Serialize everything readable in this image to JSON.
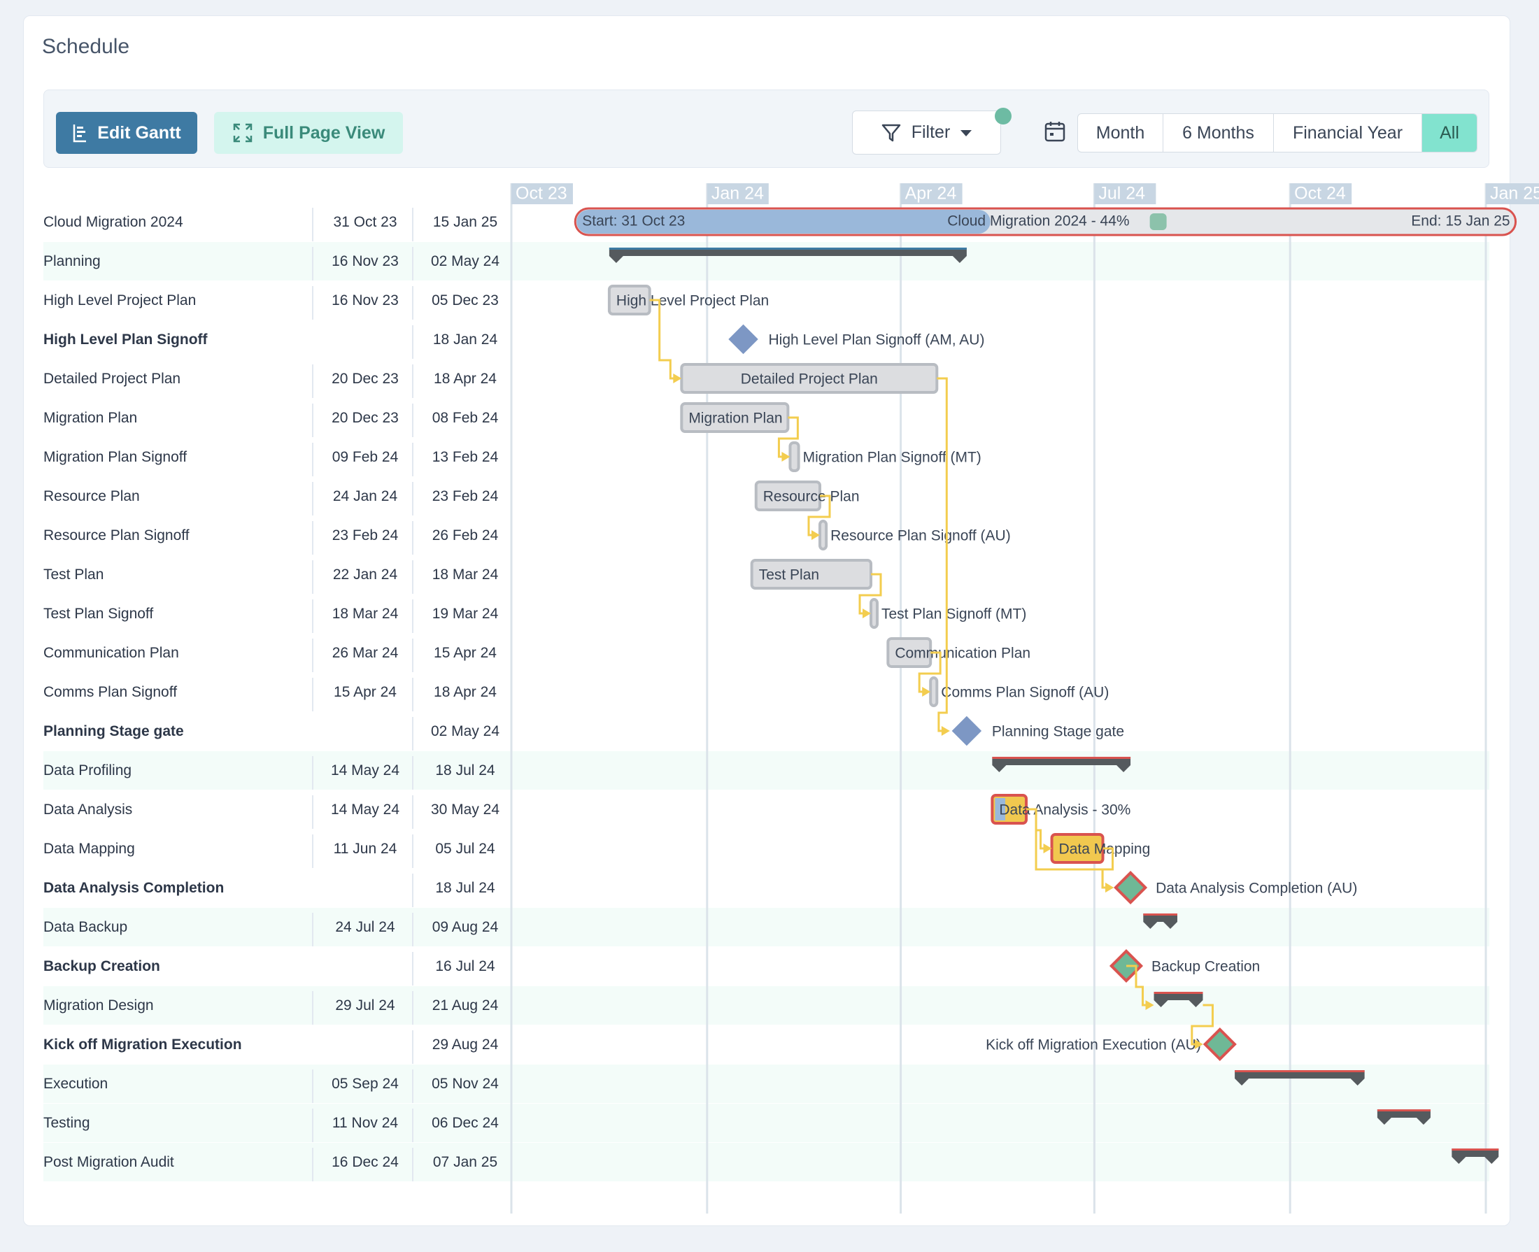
{
  "page_title": "Schedule",
  "toolbar": {
    "edit_gantt": "Edit Gantt",
    "full_page_view": "Full Page View",
    "filter": "Filter",
    "ranges": [
      "Month",
      "6 Months",
      "Financial Year",
      "All"
    ],
    "active_range": "All"
  },
  "timeline": {
    "axis_labels": [
      "Oct 23",
      "Jan 24",
      "Apr 24",
      "Jul 24",
      "Oct 24",
      "Jan 25"
    ],
    "axis_dates": [
      "2023-10-01",
      "2024-01-01",
      "2024-04-01",
      "2024-07-01",
      "2024-10-01",
      "2025-01-01"
    ]
  },
  "summary": {
    "start_label": "Start: 31 Oct 23",
    "title_label": "Cloud Migration 2024 - 44%",
    "end_label": "End: 15 Jan 25",
    "progress": 0.44
  },
  "colors": {
    "accent": "#3e7aa3",
    "teal": "#82e3cf",
    "milestone": "#7d97c4",
    "critical_border": "#d9534f",
    "link": "#f3cd4f",
    "progress_fill": "#9ab8da"
  },
  "tasks": [
    {
      "name": "Cloud Migration 2024",
      "start": "31 Oct 23",
      "end": "15 Jan 25",
      "type": "project",
      "bold": false,
      "band": false,
      "bar_label": ""
    },
    {
      "name": "Planning",
      "start": "16 Nov 23",
      "end": "02 May 24",
      "type": "group",
      "bold": false,
      "band": true,
      "bar_label": ""
    },
    {
      "name": "High Level Project Plan",
      "start": "16 Nov 23",
      "end": "05 Dec 23",
      "type": "task",
      "bold": false,
      "band": false,
      "bar_label": "High Level Project Plan"
    },
    {
      "name": "High Level Plan Signoff",
      "start": "",
      "end": "18 Jan 24",
      "type": "milestone",
      "bold": true,
      "band": false,
      "bar_label": "High Level Plan Signoff (AM, AU)"
    },
    {
      "name": "Detailed Project Plan",
      "start": "20 Dec 23",
      "end": "18 Apr 24",
      "type": "task",
      "bold": false,
      "band": false,
      "bar_label": "Detailed Project Plan"
    },
    {
      "name": "Migration Plan",
      "start": "20 Dec 23",
      "end": "08 Feb 24",
      "type": "task",
      "bold": false,
      "band": false,
      "bar_label": "Migration Plan"
    },
    {
      "name": "Migration Plan Signoff",
      "start": "09 Feb 24",
      "end": "13 Feb 24",
      "type": "task",
      "bold": false,
      "band": false,
      "bar_label": "Migration Plan Signoff (MT)"
    },
    {
      "name": "Resource Plan",
      "start": "24 Jan 24",
      "end": "23 Feb 24",
      "type": "task",
      "bold": false,
      "band": false,
      "bar_label": "Resource Plan"
    },
    {
      "name": "Resource Plan Signoff",
      "start": "23 Feb 24",
      "end": "26 Feb 24",
      "type": "task",
      "bold": false,
      "band": false,
      "bar_label": "Resource Plan Signoff (AU)"
    },
    {
      "name": "Test Plan",
      "start": "22 Jan 24",
      "end": "18 Mar 24",
      "type": "task",
      "bold": false,
      "band": false,
      "bar_label": "Test Plan"
    },
    {
      "name": "Test Plan Signoff",
      "start": "18 Mar 24",
      "end": "19 Mar 24",
      "type": "task",
      "bold": false,
      "band": false,
      "bar_label": "Test Plan Signoff (MT)"
    },
    {
      "name": "Communication Plan",
      "start": "26 Mar 24",
      "end": "15 Apr 24",
      "type": "task",
      "bold": false,
      "band": false,
      "bar_label": "Communication Plan"
    },
    {
      "name": "Comms Plan Signoff",
      "start": "15 Apr 24",
      "end": "18 Apr 24",
      "type": "task",
      "bold": false,
      "band": false,
      "bar_label": "Comms Plan Signoff (AU)"
    },
    {
      "name": "Planning Stage gate",
      "start": "",
      "end": "02 May 24",
      "type": "milestone",
      "bold": true,
      "band": false,
      "bar_label": "Planning Stage gate"
    },
    {
      "name": "Data Profiling",
      "start": "14 May 24",
      "end": "18 Jul 24",
      "type": "group",
      "bold": false,
      "band": true,
      "bar_label": ""
    },
    {
      "name": "Data Analysis",
      "start": "14 May 24",
      "end": "30 May 24",
      "type": "critical",
      "bold": false,
      "band": false,
      "bar_label": "Data Analysis - 30%",
      "progress": 0.3
    },
    {
      "name": "Data Mapping",
      "start": "11 Jun 24",
      "end": "05 Jul 24",
      "type": "critical",
      "bold": false,
      "band": false,
      "bar_label": "Data Mapping"
    },
    {
      "name": "Data Analysis Completion",
      "start": "",
      "end": "18 Jul 24",
      "type": "critical-milestone",
      "bold": true,
      "band": false,
      "bar_label": "Data Analysis Completion (AU)"
    },
    {
      "name": "Data Backup",
      "start": "24 Jul 24",
      "end": "09 Aug 24",
      "type": "group",
      "bold": false,
      "band": true,
      "bar_label": ""
    },
    {
      "name": "Backup Creation",
      "start": "",
      "end": "16 Jul 24",
      "type": "critical-milestone",
      "bold": true,
      "band": false,
      "bar_label": "Backup Creation"
    },
    {
      "name": "Migration Design",
      "start": "29 Jul 24",
      "end": "21 Aug 24",
      "type": "group",
      "bold": false,
      "band": true,
      "bar_label": ""
    },
    {
      "name": "Kick off Migration Execution",
      "start": "",
      "end": "29 Aug 24",
      "type": "critical-milestone",
      "bold": true,
      "band": false,
      "bar_label": "Kick off Migration Execution (AU)",
      "label_left": true
    },
    {
      "name": "Execution",
      "start": "05 Sep 24",
      "end": "05 Nov 24",
      "type": "group",
      "bold": false,
      "band": true,
      "bar_label": ""
    },
    {
      "name": "Testing",
      "start": "11 Nov 24",
      "end": "06 Dec 24",
      "type": "group",
      "bold": false,
      "band": true,
      "bar_label": ""
    },
    {
      "name": "Post Migration Audit",
      "start": "16 Dec 24",
      "end": "07 Jan 25",
      "type": "group",
      "bold": false,
      "band": true,
      "bar_label": ""
    }
  ],
  "links": [
    [
      2,
      4
    ],
    [
      5,
      6
    ],
    [
      7,
      8
    ],
    [
      9,
      10
    ],
    [
      11,
      12
    ],
    [
      4,
      13
    ],
    [
      15,
      16
    ],
    [
      16,
      17
    ],
    [
      15,
      17
    ],
    [
      19,
      20
    ],
    [
      20,
      21
    ]
  ]
}
